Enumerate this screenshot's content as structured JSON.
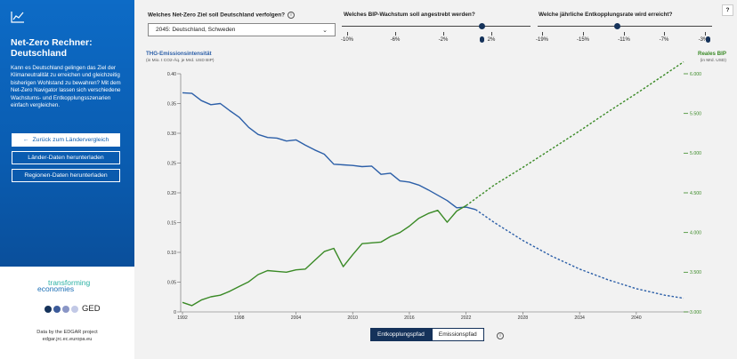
{
  "sidebar": {
    "title": "Net-Zero Rechner: Deutschland",
    "description": "Kann es Deutschland gelingen das Ziel der Klimaneutralität zu erreichen und gleichzeitig bisherigen Wohlstand zu bewahren? Mit dem Net-Zero Navigator lassen sich verschiedene Wachstums- und Entkopplungsszenarien einfach vergleichen.",
    "back_button": "Zurück zum Ländervergleich",
    "country_download": "Länder-Daten herunterladen",
    "region_download": "Regionen-Daten herunterladen",
    "logo_top": "transforming",
    "logo_bottom": "economies",
    "ged_label": "GED",
    "edgar_line1": "Data by the EDGAR project",
    "edgar_line2": "edgar.jrc.ec.europa.eu",
    "icon": "chart-line-icon",
    "color": "#0a5cb0"
  },
  "controls": {
    "target_label": "Welches Net-Zero Ziel soll Deutschland verfolgen?",
    "target_value": "2045: Deutschland, Schweden",
    "gdp_label": "Welches BIP-Wachstum soll angestrebt werden?",
    "gdp_ticks": [
      "-10%",
      "-6%",
      "-2%",
      "2%"
    ],
    "decoupling_label": "Welche jährliche Entkopplungsrate wird erreicht?",
    "decoupling_ticks": [
      "-19%",
      "-15%",
      "-11%",
      "-7%",
      "-3%"
    ],
    "help": "?"
  },
  "toggle": {
    "active": "Entkopplungspfad",
    "inactive": "Emissionspfad"
  },
  "chart_data": {
    "type": "line",
    "y_left_title": "THG-Emissionsintensität",
    "y_left_unit": "(in Mio. t CO2-Äq. je Mrd. USD BIP)",
    "y_right_title": "Reales BIP",
    "y_right_unit": "(in Mrd. USD)",
    "x_ticks": [
      1992,
      1998,
      2004,
      2010,
      2016,
      2022,
      2028,
      2034,
      2040
    ],
    "y_left_ticks": [
      "0",
      "0.05",
      "0.10",
      "0.15",
      "0.20",
      "0.25",
      "0.30",
      "0.35",
      "0.40"
    ],
    "y_right_ticks": [
      "3.000",
      "3.500",
      "4.000",
      "4.500",
      "5.000",
      "5.500",
      "6.000"
    ],
    "ylim_left": [
      0,
      0.4
    ],
    "ylim_right": [
      3000,
      6000
    ],
    "xlim": [
      1992,
      2045
    ],
    "series": [
      {
        "name": "THG-Emissionsintensität",
        "axis": "left",
        "color": "#2c5fa8",
        "historical": [
          [
            1992,
            0.368
          ],
          [
            1993,
            0.367
          ],
          [
            1994,
            0.355
          ],
          [
            1995,
            0.348
          ],
          [
            1996,
            0.35
          ],
          [
            1997,
            0.338
          ],
          [
            1998,
            0.327
          ],
          [
            1999,
            0.31
          ],
          [
            2000,
            0.298
          ],
          [
            2001,
            0.293
          ],
          [
            2002,
            0.292
          ],
          [
            2003,
            0.287
          ],
          [
            2004,
            0.289
          ],
          [
            2005,
            0.28
          ],
          [
            2006,
            0.272
          ],
          [
            2007,
            0.265
          ],
          [
            2008,
            0.248
          ],
          [
            2009,
            0.247
          ],
          [
            2010,
            0.246
          ],
          [
            2011,
            0.244
          ],
          [
            2012,
            0.245
          ],
          [
            2013,
            0.231
          ],
          [
            2014,
            0.233
          ],
          [
            2015,
            0.22
          ],
          [
            2016,
            0.218
          ],
          [
            2017,
            0.213
          ],
          [
            2018,
            0.205
          ],
          [
            2019,
            0.196
          ],
          [
            2020,
            0.187
          ],
          [
            2021,
            0.175
          ],
          [
            2022,
            0.176
          ],
          [
            2023,
            0.172
          ]
        ],
        "projection": [
          [
            2023,
            0.172
          ],
          [
            2025,
            0.15
          ],
          [
            2028,
            0.12
          ],
          [
            2031,
            0.094
          ],
          [
            2034,
            0.072
          ],
          [
            2037,
            0.054
          ],
          [
            2040,
            0.039
          ],
          [
            2043,
            0.028
          ],
          [
            2045,
            0.023
          ]
        ]
      },
      {
        "name": "Reales BIP",
        "axis": "right",
        "color": "#3a8a26",
        "historical": [
          [
            1992,
            3120
          ],
          [
            1993,
            3080
          ],
          [
            1994,
            3150
          ],
          [
            1995,
            3190
          ],
          [
            1996,
            3210
          ],
          [
            1997,
            3260
          ],
          [
            1998,
            3320
          ],
          [
            1999,
            3380
          ],
          [
            2000,
            3470
          ],
          [
            2001,
            3520
          ],
          [
            2002,
            3510
          ],
          [
            2003,
            3500
          ],
          [
            2004,
            3530
          ],
          [
            2005,
            3540
          ],
          [
            2006,
            3650
          ],
          [
            2007,
            3760
          ],
          [
            2008,
            3800
          ],
          [
            2009,
            3570
          ],
          [
            2010,
            3720
          ],
          [
            2011,
            3860
          ],
          [
            2012,
            3870
          ],
          [
            2013,
            3880
          ],
          [
            2014,
            3950
          ],
          [
            2015,
            4000
          ],
          [
            2016,
            4080
          ],
          [
            2017,
            4180
          ],
          [
            2018,
            4240
          ],
          [
            2019,
            4280
          ],
          [
            2020,
            4130
          ],
          [
            2021,
            4270
          ],
          [
            2022,
            4340
          ]
        ],
        "projection": [
          [
            2022,
            4340
          ],
          [
            2025,
            4600
          ],
          [
            2028,
            4820
          ],
          [
            2031,
            5050
          ],
          [
            2034,
            5280
          ],
          [
            2037,
            5520
          ],
          [
            2040,
            5750
          ],
          [
            2043,
            5990
          ],
          [
            2045,
            6150
          ]
        ]
      }
    ]
  }
}
